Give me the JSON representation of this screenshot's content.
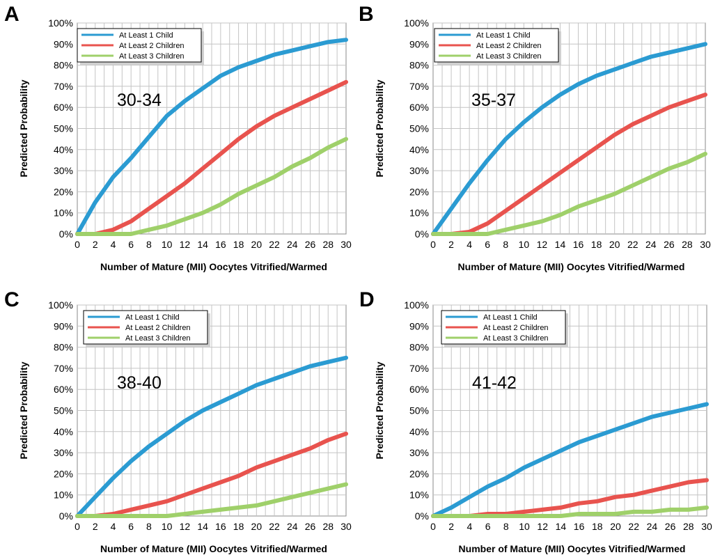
{
  "colors": {
    "at_least_1": "#2b9bd2",
    "at_least_2": "#e8534e",
    "at_least_3": "#9fd06a"
  },
  "chart_data": [
    {
      "panel": "A",
      "type": "line",
      "annotation": "30-34",
      "xlabel": "Number of Mature (MII) Oocytes Vitrified/Warmed",
      "ylabel": "Predicted Probability",
      "xlim": [
        0,
        30
      ],
      "ylim": [
        0,
        100
      ],
      "x_ticks": [
        0,
        2,
        4,
        6,
        8,
        10,
        12,
        14,
        16,
        18,
        20,
        22,
        24,
        26,
        28,
        30
      ],
      "y_ticks": [
        0,
        10,
        20,
        30,
        40,
        50,
        60,
        70,
        80,
        90,
        100
      ],
      "y_tick_suffix": "%",
      "grid": true,
      "legend_position": "top-left",
      "x": [
        0,
        2,
        4,
        6,
        8,
        10,
        12,
        14,
        16,
        18,
        20,
        22,
        24,
        26,
        28,
        30
      ],
      "series": [
        {
          "name": "At Least 1 Child",
          "values": [
            0,
            15,
            27,
            36,
            46,
            56,
            63,
            69,
            75,
            79,
            82,
            85,
            87,
            89,
            91,
            92
          ]
        },
        {
          "name": "At Least 2 Children",
          "values": [
            0,
            0,
            2,
            6,
            12,
            18,
            24,
            31,
            38,
            45,
            51,
            56,
            60,
            64,
            68,
            72
          ]
        },
        {
          "name": "At Least 3 Children",
          "values": [
            0,
            0,
            0,
            0,
            2,
            4,
            7,
            10,
            14,
            19,
            23,
            27,
            32,
            36,
            41,
            45
          ]
        }
      ]
    },
    {
      "panel": "B",
      "type": "line",
      "annotation": "35-37",
      "xlabel": "Number of Mature (MII) Oocytes Vitrified/Warmed",
      "ylabel": "Predicted Probability",
      "xlim": [
        0,
        30
      ],
      "ylim": [
        0,
        100
      ],
      "x_ticks": [
        0,
        2,
        4,
        6,
        8,
        10,
        12,
        14,
        16,
        18,
        20,
        22,
        24,
        26,
        28,
        30
      ],
      "y_ticks": [
        0,
        10,
        20,
        30,
        40,
        50,
        60,
        70,
        80,
        90,
        100
      ],
      "y_tick_suffix": "%",
      "grid": true,
      "legend_position": "top-left",
      "x": [
        0,
        2,
        4,
        6,
        8,
        10,
        12,
        14,
        16,
        18,
        20,
        22,
        24,
        26,
        28,
        30
      ],
      "series": [
        {
          "name": "At Least 1 Child",
          "values": [
            0,
            12,
            24,
            35,
            45,
            53,
            60,
            66,
            71,
            75,
            78,
            81,
            84,
            86,
            88,
            90
          ]
        },
        {
          "name": "At Least 2 Children",
          "values": [
            0,
            0,
            1,
            5,
            11,
            17,
            23,
            29,
            35,
            41,
            47,
            52,
            56,
            60,
            63,
            66
          ]
        },
        {
          "name": "At Least 3 Children",
          "values": [
            0,
            0,
            0,
            0,
            2,
            4,
            6,
            9,
            13,
            16,
            19,
            23,
            27,
            31,
            34,
            38
          ]
        }
      ]
    },
    {
      "panel": "C",
      "type": "line",
      "annotation": "38-40",
      "xlabel": "Number of Mature (MII) Oocytes Vitrified/Warmed",
      "ylabel": "Predicted Probability",
      "xlim": [
        0,
        30
      ],
      "ylim": [
        0,
        100
      ],
      "x_ticks": [
        0,
        2,
        4,
        6,
        8,
        10,
        12,
        14,
        16,
        18,
        20,
        22,
        24,
        26,
        28,
        30
      ],
      "y_ticks": [
        0,
        10,
        20,
        30,
        40,
        50,
        60,
        70,
        80,
        90,
        100
      ],
      "y_tick_suffix": "%",
      "grid": true,
      "legend_position": "top-left",
      "x": [
        0,
        2,
        4,
        6,
        8,
        10,
        12,
        14,
        16,
        18,
        20,
        22,
        24,
        26,
        28,
        30
      ],
      "series": [
        {
          "name": "At Least 1 Child",
          "values": [
            0,
            9,
            18,
            26,
            33,
            39,
            45,
            50,
            54,
            58,
            62,
            65,
            68,
            71,
            73,
            75
          ]
        },
        {
          "name": "At Least 2 Children",
          "values": [
            0,
            0,
            1,
            3,
            5,
            7,
            10,
            13,
            16,
            19,
            23,
            26,
            29,
            32,
            36,
            39
          ]
        },
        {
          "name": "At Least 3 Children",
          "values": [
            0,
            0,
            0,
            0,
            0,
            0,
            1,
            2,
            3,
            4,
            5,
            7,
            9,
            11,
            13,
            15
          ]
        }
      ]
    },
    {
      "panel": "D",
      "type": "line",
      "annotation": "41-42",
      "xlabel": "Number of Mature (MII) Oocytes Vitrified/Warmed",
      "ylabel": "Predicted Probability",
      "xlim": [
        0,
        30
      ],
      "ylim": [
        0,
        100
      ],
      "x_ticks": [
        0,
        2,
        4,
        6,
        8,
        10,
        12,
        14,
        16,
        18,
        20,
        22,
        24,
        26,
        28,
        30
      ],
      "y_ticks": [
        0,
        10,
        20,
        30,
        40,
        50,
        60,
        70,
        80,
        90,
        100
      ],
      "y_tick_suffix": "%",
      "grid": true,
      "legend_position": "top-left",
      "x": [
        0,
        2,
        4,
        6,
        8,
        10,
        12,
        14,
        16,
        18,
        20,
        22,
        24,
        26,
        28,
        30
      ],
      "series": [
        {
          "name": "At Least 1 Child",
          "values": [
            0,
            4,
            9,
            14,
            18,
            23,
            27,
            31,
            35,
            38,
            41,
            44,
            47,
            49,
            51,
            53
          ]
        },
        {
          "name": "At Least 2 Children",
          "values": [
            0,
            0,
            0,
            1,
            1,
            2,
            3,
            4,
            6,
            7,
            9,
            10,
            12,
            14,
            16,
            17
          ]
        },
        {
          "name": "At Least 3 Children",
          "values": [
            0,
            0,
            0,
            0,
            0,
            0,
            0,
            0,
            1,
            1,
            1,
            2,
            2,
            3,
            3,
            4
          ]
        }
      ]
    }
  ]
}
